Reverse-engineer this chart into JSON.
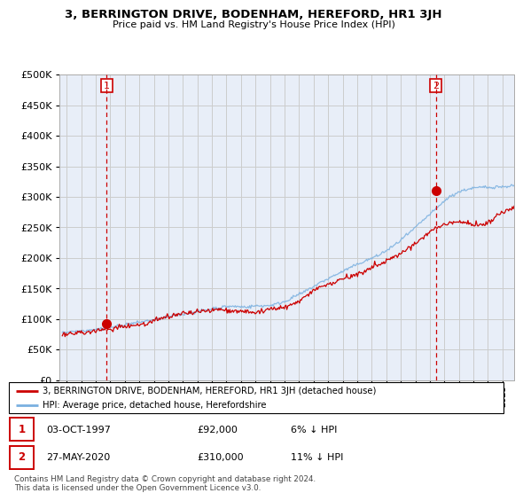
{
  "title": "3, BERRINGTON DRIVE, BODENHAM, HEREFORD, HR1 3JH",
  "subtitle": "Price paid vs. HM Land Registry's House Price Index (HPI)",
  "legend_line1": "3, BERRINGTON DRIVE, BODENHAM, HEREFORD, HR1 3JH (detached house)",
  "legend_line2": "HPI: Average price, detached house, Herefordshire",
  "sale1_date": "03-OCT-1997",
  "sale1_price": "£92,000",
  "sale1_hpi": "6% ↓ HPI",
  "sale2_date": "27-MAY-2020",
  "sale2_price": "£310,000",
  "sale2_hpi": "11% ↓ HPI",
  "footer": "Contains HM Land Registry data © Crown copyright and database right 2024.\nThis data is licensed under the Open Government Licence v3.0.",
  "hpi_color": "#7ab0e0",
  "price_color": "#cc0000",
  "dot_color": "#cc0000",
  "vline_color": "#cc0000",
  "background_color": "#ffffff",
  "plot_bg_color": "#e8eef8",
  "grid_color": "#cccccc",
  "ylim": [
    0,
    500000
  ],
  "yticks": [
    0,
    50000,
    100000,
    150000,
    200000,
    250000,
    300000,
    350000,
    400000,
    450000,
    500000
  ],
  "sale1_x": 1997.75,
  "sale1_y": 92000,
  "sale2_x": 2020.41,
  "sale2_y": 310000,
  "xmin": 1994.5,
  "xmax": 2025.8
}
